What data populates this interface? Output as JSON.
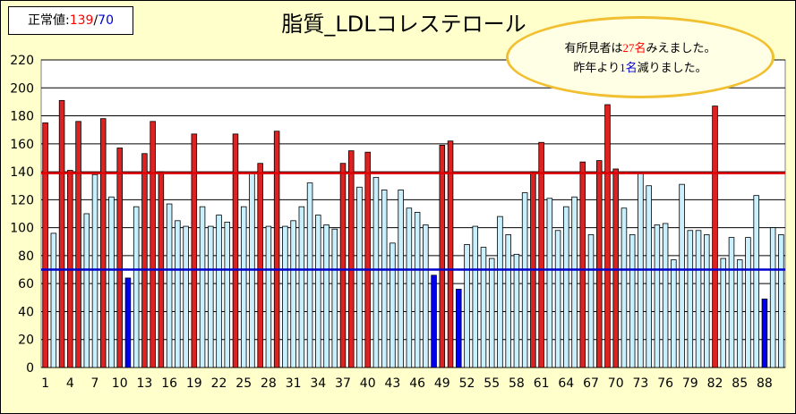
{
  "normal_value": {
    "label": "正常値:",
    "upper": "139",
    "sep": "/",
    "lower": "70"
  },
  "callout": {
    "line1_pre": "有所見者は",
    "line1_num": "27名",
    "line1_post": "みえました。",
    "line2_pre": "昨年より",
    "line2_num": "1名",
    "line2_post": "減りました。"
  },
  "colors": {
    "high": "#dd2222",
    "normal": "#c8f0ff",
    "low": "#0000ee",
    "upper_line": "#e00000",
    "lower_line": "#0000cc"
  },
  "chart_data": {
    "type": "bar",
    "title": "脂質_LDLコレステロール",
    "ylim": [
      0,
      220
    ],
    "yticks": [
      0,
      20,
      40,
      60,
      80,
      100,
      120,
      140,
      160,
      180,
      200,
      220
    ],
    "xticks": [
      "1",
      "4",
      "7",
      "10",
      "13",
      "16",
      "19",
      "22",
      "25",
      "28",
      "31",
      "34",
      "37",
      "40",
      "43",
      "46",
      "49",
      "52",
      "55",
      "58",
      "61",
      "64",
      "67",
      "70",
      "73",
      "76",
      "79",
      "82",
      "85",
      "88"
    ],
    "upper_threshold": 139,
    "lower_threshold": 70,
    "values": [
      175,
      96,
      191,
      141,
      176,
      110,
      138,
      178,
      122,
      157,
      64,
      115,
      153,
      176,
      140,
      117,
      105,
      101,
      167,
      115,
      101,
      109,
      104,
      167,
      115,
      139,
      146,
      101,
      169,
      101,
      105,
      115,
      132,
      109,
      102,
      99,
      146,
      155,
      129,
      154,
      136,
      127,
      89,
      127,
      114,
      111,
      102,
      66,
      159,
      162,
      56,
      88,
      101,
      86,
      78,
      108,
      95,
      81,
      125,
      140,
      161,
      121,
      98,
      115,
      122,
      147,
      95,
      148,
      188,
      142,
      114,
      95,
      139,
      130,
      102,
      103,
      77,
      131,
      98,
      98,
      95,
      187,
      78,
      93,
      77,
      93,
      123,
      49,
      100,
      95
    ]
  }
}
